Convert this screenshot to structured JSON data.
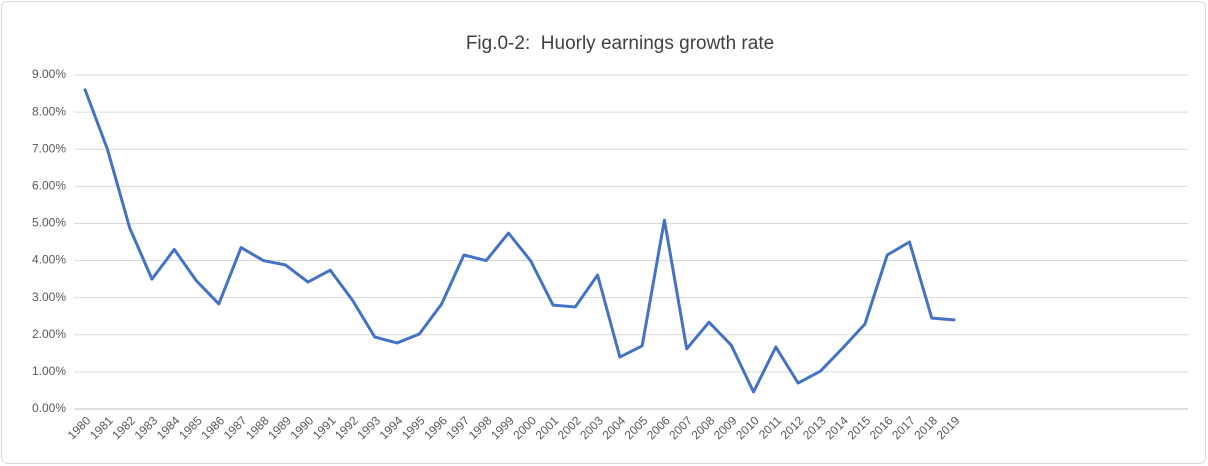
{
  "chart_data": {
    "type": "line",
    "title": "Fig.0-2:  Huorly earnings growth rate",
    "categories": [
      "1980",
      "1981",
      "1982",
      "1983",
      "1984",
      "1985",
      "1986",
      "1987",
      "1988",
      "1989",
      "1990",
      "1991",
      "1992",
      "1993",
      "1994",
      "1995",
      "1996",
      "1997",
      "1998",
      "1999",
      "2000",
      "2001",
      "2002",
      "2003",
      "2004",
      "2005",
      "2006",
      "2007",
      "2008",
      "2009",
      "2010",
      "2011",
      "2012",
      "2013",
      "2014",
      "2015",
      "2016",
      "2017",
      "2018",
      "2019",
      null,
      null,
      null,
      null,
      null,
      null,
      null,
      null,
      null,
      null
    ],
    "series": [
      {
        "name": "Hourly earnings growth rate",
        "color": "#4472c4",
        "values": [
          8.6,
          7.0,
          4.88,
          3.5,
          4.3,
          3.45,
          2.83,
          4.35,
          4.0,
          3.88,
          3.42,
          3.74,
          2.93,
          1.94,
          1.78,
          2.02,
          2.83,
          4.15,
          4.0,
          4.74,
          3.99,
          2.8,
          2.75,
          3.61,
          1.4,
          1.7,
          5.09,
          1.62,
          2.34,
          1.72,
          0.46,
          1.67,
          0.7,
          1.02,
          1.64,
          2.29,
          4.15,
          4.5,
          2.45,
          2.4,
          null,
          null,
          null,
          null,
          null,
          null,
          null,
          null,
          null,
          null
        ]
      }
    ],
    "ylim": [
      0,
      9
    ],
    "yticks": [
      {
        "value": 0,
        "label": "0.00%"
      },
      {
        "value": 1,
        "label": "1.00%"
      },
      {
        "value": 2,
        "label": "2.00%"
      },
      {
        "value": 3,
        "label": "3.00%"
      },
      {
        "value": 4,
        "label": "4.00%"
      },
      {
        "value": 5,
        "label": "5.00%"
      },
      {
        "value": 6,
        "label": "6.00%"
      },
      {
        "value": 7,
        "label": "7.00%"
      },
      {
        "value": 8,
        "label": "8.00%"
      },
      {
        "value": 9,
        "label": "9.00%"
      }
    ],
    "grid": true
  }
}
